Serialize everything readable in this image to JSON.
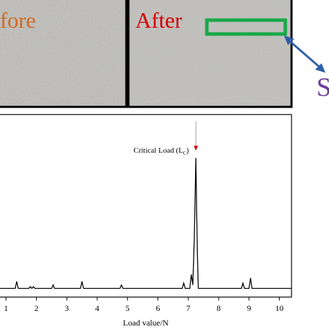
{
  "figure": {
    "before_label": "fore",
    "after_label": "After",
    "side_label": "S"
  },
  "chart_data": {
    "type": "line",
    "x": [
      0.8,
      1.3,
      1.35,
      1.4,
      1.75,
      1.8,
      1.85,
      1.9,
      1.95,
      2.5,
      2.55,
      2.6,
      3.45,
      3.5,
      3.55,
      4.75,
      4.8,
      4.85,
      6.8,
      6.85,
      6.9,
      7.05,
      7.1,
      7.15,
      7.2,
      7.25,
      7.28,
      7.3,
      7.33,
      8.75,
      8.8,
      8.85,
      9.0,
      9.05,
      9.1,
      10.4
    ],
    "series": [
      {
        "color": "#000000",
        "values": [
          0,
          0,
          0.04,
          0,
          0,
          0.01,
          0,
          0.01,
          0,
          0,
          0.02,
          0,
          0,
          0.04,
          0,
          0,
          0.02,
          0,
          0,
          0.03,
          0,
          0,
          0.08,
          0.02,
          0.3,
          0.75,
          0.4,
          0.2,
          0,
          0,
          0.03,
          0,
          0,
          0.06,
          0,
          0
        ]
      }
    ],
    "xlabel": "Load value/N",
    "xlim": [
      0.8,
      10.4
    ],
    "xticks": [
      1,
      2,
      3,
      4,
      5,
      6,
      7,
      8,
      9,
      10
    ],
    "ylim": [
      -0.05,
      1
    ],
    "annotation": {
      "text": "Critical Load (L",
      "sub": "C",
      "close": ")",
      "x": 7.25
    }
  }
}
